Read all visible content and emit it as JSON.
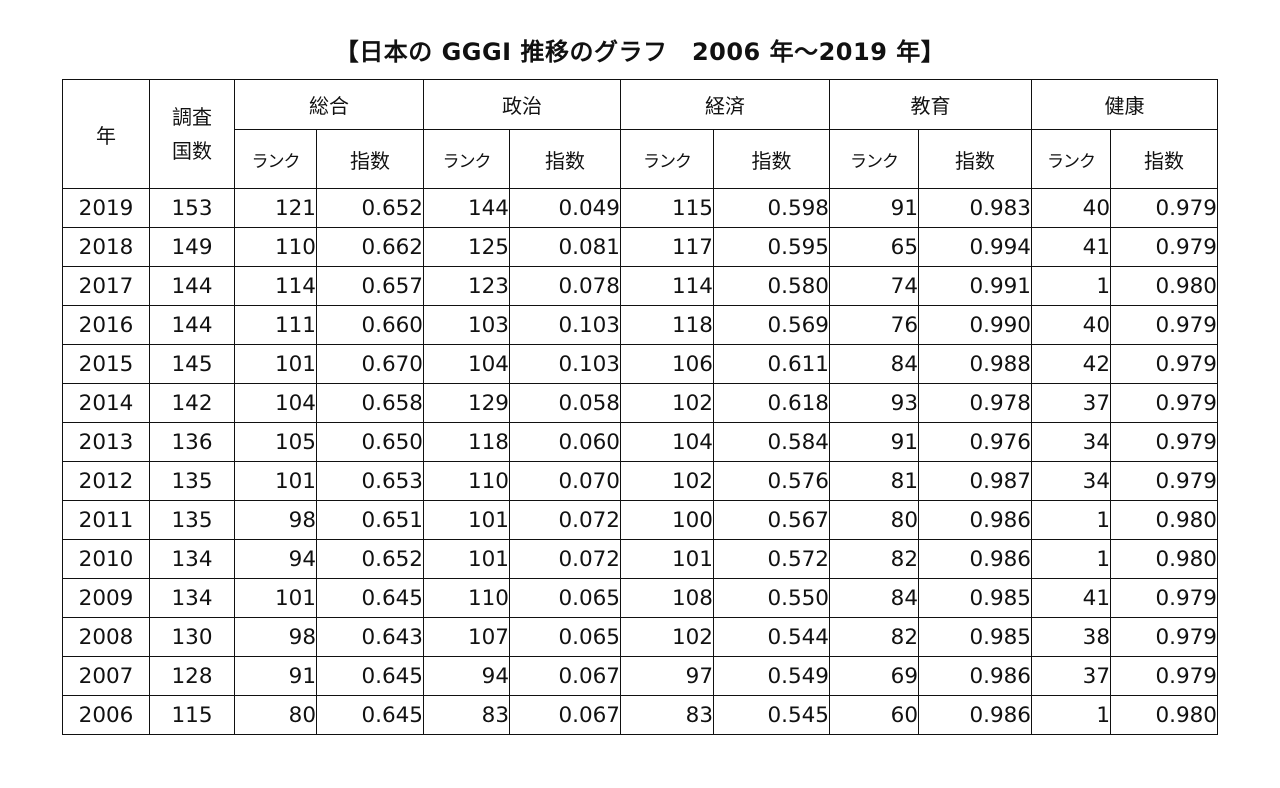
{
  "title": "【日本の GGGI 推移のグラフ　2006 年～2019 年】",
  "headers": {
    "year": "年",
    "count_line1": "調査",
    "count_line2": "国数",
    "groups": [
      "総合",
      "政治",
      "経済",
      "教育",
      "健康"
    ],
    "rank": "ランク",
    "index": "指数"
  },
  "rows": [
    {
      "year": "2019",
      "count": "153",
      "cells": [
        "121",
        "0.652",
        "144",
        "0.049",
        "115",
        "0.598",
        "91",
        "0.983",
        "40",
        "0.979"
      ]
    },
    {
      "year": "2018",
      "count": "149",
      "cells": [
        "110",
        "0.662",
        "125",
        "0.081",
        "117",
        "0.595",
        "65",
        "0.994",
        "41",
        "0.979"
      ]
    },
    {
      "year": "2017",
      "count": "144",
      "cells": [
        "114",
        "0.657",
        "123",
        "0.078",
        "114",
        "0.580",
        "74",
        "0.991",
        "1",
        "0.980"
      ]
    },
    {
      "year": "2016",
      "count": "144",
      "cells": [
        "111",
        "0.660",
        "103",
        "0.103",
        "118",
        "0.569",
        "76",
        "0.990",
        "40",
        "0.979"
      ]
    },
    {
      "year": "2015",
      "count": "145",
      "cells": [
        "101",
        "0.670",
        "104",
        "0.103",
        "106",
        "0.611",
        "84",
        "0.988",
        "42",
        "0.979"
      ]
    },
    {
      "year": "2014",
      "count": "142",
      "cells": [
        "104",
        "0.658",
        "129",
        "0.058",
        "102",
        "0.618",
        "93",
        "0.978",
        "37",
        "0.979"
      ]
    },
    {
      "year": "2013",
      "count": "136",
      "cells": [
        "105",
        "0.650",
        "118",
        "0.060",
        "104",
        "0.584",
        "91",
        "0.976",
        "34",
        "0.979"
      ]
    },
    {
      "year": "2012",
      "count": "135",
      "cells": [
        "101",
        "0.653",
        "110",
        "0.070",
        "102",
        "0.576",
        "81",
        "0.987",
        "34",
        "0.979"
      ]
    },
    {
      "year": "2011",
      "count": "135",
      "cells": [
        "98",
        "0.651",
        "101",
        "0.072",
        "100",
        "0.567",
        "80",
        "0.986",
        "1",
        "0.980"
      ]
    },
    {
      "year": "2010",
      "count": "134",
      "cells": [
        "94",
        "0.652",
        "101",
        "0.072",
        "101",
        "0.572",
        "82",
        "0.986",
        "1",
        "0.980"
      ]
    },
    {
      "year": "2009",
      "count": "134",
      "cells": [
        "101",
        "0.645",
        "110",
        "0.065",
        "108",
        "0.550",
        "84",
        "0.985",
        "41",
        "0.979"
      ]
    },
    {
      "year": "2008",
      "count": "130",
      "cells": [
        "98",
        "0.643",
        "107",
        "0.065",
        "102",
        "0.544",
        "82",
        "0.985",
        "38",
        "0.979"
      ]
    },
    {
      "year": "2007",
      "count": "128",
      "cells": [
        "91",
        "0.645",
        "94",
        "0.067",
        "97",
        "0.549",
        "69",
        "0.986",
        "37",
        "0.979"
      ]
    },
    {
      "year": "2006",
      "count": "115",
      "cells": [
        "80",
        "0.645",
        "83",
        "0.067",
        "83",
        "0.545",
        "60",
        "0.986",
        "1",
        "0.980"
      ]
    }
  ]
}
